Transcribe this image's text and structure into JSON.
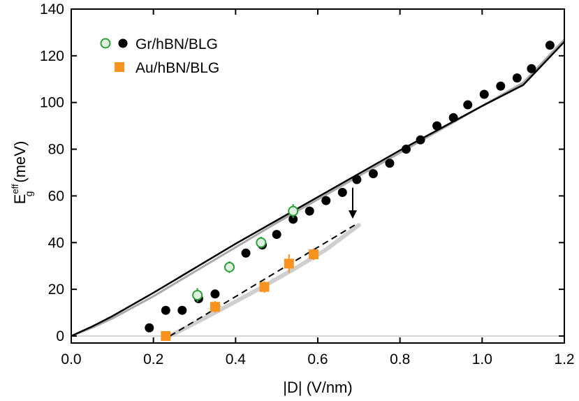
{
  "chart_data": {
    "type": "scatter",
    "xlabel": "|D| (V/nm)",
    "ylabel": {
      "main": "E",
      "sup": "eff",
      "sub": "g",
      "unit": "(meV)"
    },
    "xlim": [
      0,
      1.2
    ],
    "ylim": [
      -3,
      140
    ],
    "xticks": [
      0.0,
      0.2,
      0.4,
      0.6,
      0.8,
      1.0,
      1.2
    ],
    "xtick_labels": [
      "0.0",
      "0.2",
      "0.4",
      "0.6",
      "0.8",
      "1.0",
      "1.2"
    ],
    "yticks": [
      0,
      20,
      40,
      60,
      80,
      100,
      120,
      140
    ],
    "ytick_labels": [
      "0",
      "20",
      "40",
      "60",
      "80",
      "100",
      "120",
      "140"
    ],
    "grid": false,
    "legend": {
      "placement": "top-left",
      "entries": [
        {
          "label": "Gr/hBN/BLG",
          "markers": [
            "open-green-circle",
            "black-circle"
          ]
        },
        {
          "label": "Au/hBN/BLG",
          "markers": [
            "orange-square"
          ]
        }
      ]
    },
    "series": [
      {
        "name": "Gr/hBN/BLG",
        "marker": "filled-circle",
        "color": "#000000",
        "x": [
          0.19,
          0.23,
          0.27,
          0.31,
          0.35,
          0.385,
          0.425,
          0.465,
          0.5,
          0.54,
          0.58,
          0.62,
          0.66,
          0.695,
          0.735,
          0.775,
          0.815,
          0.85,
          0.89,
          0.93,
          0.965,
          1.005,
          1.045,
          1.085,
          1.12,
          1.165
        ],
        "y": [
          3.5,
          11,
          11,
          16,
          18,
          29.5,
          35.5,
          39,
          43.5,
          50,
          53.5,
          58,
          61.5,
          67,
          69.5,
          74,
          80,
          84,
          90,
          93.5,
          99,
          103.5,
          107,
          110.5,
          114.5,
          124.5
        ]
      },
      {
        "name": "Gr/hBN/BLG (open)",
        "marker": "open-circle",
        "color": "#2e9e3e",
        "x": [
          0.307,
          0.385,
          0.462,
          0.54
        ],
        "y": [
          17.5,
          29.5,
          40,
          53.5
        ],
        "yerr": [
          3,
          2.5,
          2.5,
          3
        ]
      },
      {
        "name": "Au/hBN/BLG",
        "marker": "filled-square",
        "color": "#f7931e",
        "x": [
          0.23,
          0.35,
          0.47,
          0.53,
          0.59
        ],
        "y": [
          0,
          12.5,
          21,
          31,
          35
        ],
        "yerr": [
          1.5,
          2.5,
          2.5,
          4,
          2.5
        ]
      }
    ],
    "curves": [
      {
        "style": "solid-black",
        "x": [
          0,
          0.05,
          0.1,
          0.2,
          0.3,
          0.4,
          0.5,
          0.6,
          0.7,
          0.8,
          0.9,
          1.0,
          1.1,
          1.2
        ],
        "y": [
          0,
          4,
          8.5,
          18.5,
          29,
          39.5,
          49.5,
          59.5,
          69.5,
          79.5,
          89,
          98.5,
          107.5,
          126
        ]
      },
      {
        "style": "solid-gray",
        "x": [
          0,
          0.05,
          0.1,
          0.2,
          0.3,
          0.4,
          0.5,
          0.6,
          0.7,
          0.8,
          0.9,
          1.0,
          1.1,
          1.2
        ],
        "y": [
          0,
          3.5,
          7.5,
          17,
          27.5,
          38,
          48.5,
          58.5,
          68.5,
          78.5,
          88.5,
          98.5,
          108.5,
          127
        ]
      },
      {
        "style": "dashed-black",
        "x": [
          0.24,
          0.69
        ],
        "y": [
          0,
          47.5
        ]
      },
      {
        "style": "thick-light-gray",
        "x": [
          0.24,
          0.35,
          0.45,
          0.55,
          0.62,
          0.7
        ],
        "y": [
          0,
          10,
          19.5,
          29.5,
          37,
          47.5
        ]
      },
      {
        "style": "thin-gray",
        "x": [
          0,
          1.2
        ],
        "y": [
          0,
          0
        ]
      }
    ],
    "annotations": [
      {
        "type": "arrow",
        "from": [
          0.685,
          63.5
        ],
        "to": [
          0.685,
          50.5
        ]
      }
    ]
  }
}
